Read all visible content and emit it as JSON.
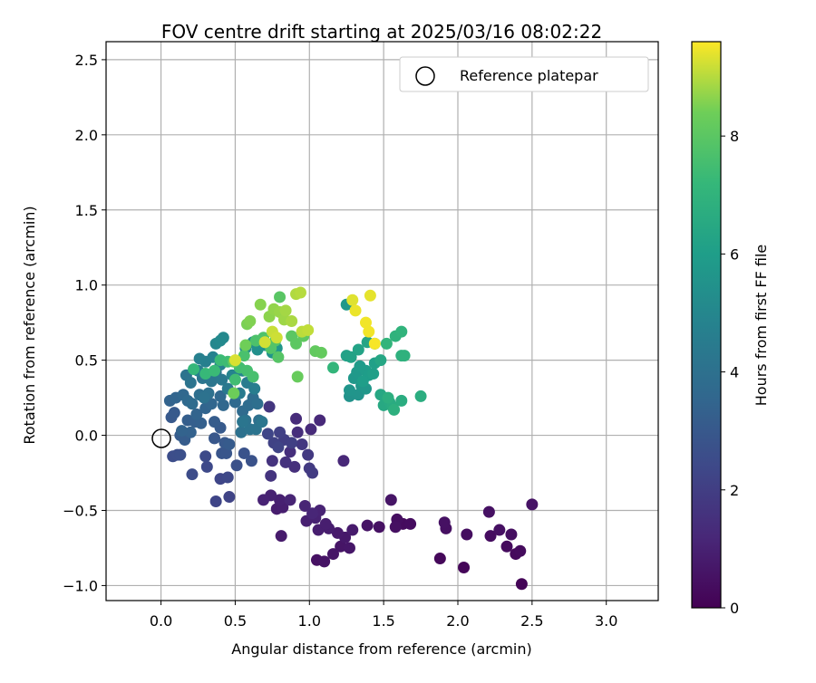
{
  "chart_data": {
    "type": "scatter",
    "title": "FOV centre drift starting at 2025/03/16 08:02:22",
    "xlabel": "Angular distance from reference (arcmin)",
    "ylabel": "Rotation from reference (arcmin)",
    "colorbar_label": "Hours from first FF file",
    "colormap": "viridis",
    "color_range": [
      0,
      9.6
    ],
    "xlim": [
      -0.37,
      3.35
    ],
    "ylim": [
      -1.1,
      2.62
    ],
    "xticks": [
      "0.0",
      "0.5",
      "1.0",
      "1.5",
      "2.0",
      "2.5",
      "3.0"
    ],
    "yticks": [
      "−1.0",
      "−0.5",
      "0.0",
      "0.5",
      "1.0",
      "1.5",
      "2.0",
      "2.5"
    ],
    "colorbar_ticks": [
      "0",
      "2",
      "4",
      "6",
      "8"
    ],
    "grid": true,
    "legend": {
      "position": "top-right",
      "entries": [
        "Reference platepar"
      ]
    },
    "reference_point": {
      "x": 0.0,
      "y": 0.0
    },
    "points": [
      [
        2.43,
        -0.99,
        0.1
      ],
      [
        2.04,
        -0.88,
        0.15
      ],
      [
        1.88,
        -0.82,
        0.2
      ],
      [
        2.39,
        -0.79,
        0.25
      ],
      [
        2.42,
        -0.77,
        0.3
      ],
      [
        2.33,
        -0.74,
        0.3
      ],
      [
        2.22,
        -0.67,
        0.35
      ],
      [
        2.36,
        -0.66,
        0.4
      ],
      [
        2.06,
        -0.66,
        0.4
      ],
      [
        2.28,
        -0.63,
        0.45
      ],
      [
        1.92,
        -0.62,
        0.45
      ],
      [
        1.91,
        -0.58,
        0.5
      ],
      [
        2.21,
        -0.51,
        0.5
      ],
      [
        2.5,
        -0.46,
        0.55
      ],
      [
        1.63,
        -0.59,
        0.3
      ],
      [
        1.68,
        -0.59,
        0.35
      ],
      [
        1.59,
        -0.56,
        0.4
      ],
      [
        1.58,
        -0.61,
        0.45
      ],
      [
        1.47,
        -0.61,
        0.5
      ],
      [
        1.39,
        -0.6,
        0.55
      ],
      [
        1.55,
        -0.43,
        0.6
      ],
      [
        1.05,
        -0.83,
        0.5
      ],
      [
        1.1,
        -0.84,
        0.55
      ],
      [
        1.16,
        -0.79,
        0.6
      ],
      [
        1.21,
        -0.74,
        0.6
      ],
      [
        1.27,
        -0.75,
        0.65
      ],
      [
        1.24,
        -0.68,
        0.7
      ],
      [
        1.19,
        -0.65,
        0.75
      ],
      [
        1.29,
        -0.63,
        0.8
      ],
      [
        1.13,
        -0.62,
        0.85
      ],
      [
        1.06,
        -0.63,
        0.9
      ],
      [
        1.11,
        -0.59,
        0.9
      ],
      [
        0.98,
        -0.57,
        0.95
      ],
      [
        1.04,
        -0.55,
        1.0
      ],
      [
        1.07,
        -0.5,
        1.05
      ],
      [
        0.97,
        -0.47,
        1.1
      ],
      [
        1.02,
        -0.52,
        1.15
      ],
      [
        0.81,
        -0.67,
        0.8
      ],
      [
        0.78,
        -0.49,
        0.85
      ],
      [
        0.82,
        -0.48,
        0.9
      ],
      [
        0.8,
        -0.43,
        0.95
      ],
      [
        0.74,
        -0.4,
        1.0
      ],
      [
        0.69,
        -0.43,
        1.05
      ],
      [
        0.87,
        -0.43,
        1.1
      ],
      [
        1.23,
        -0.17,
        1.2
      ],
      [
        1.07,
        0.1,
        1.25
      ],
      [
        1.01,
        0.04,
        1.3
      ],
      [
        0.91,
        0.11,
        1.35
      ],
      [
        0.92,
        0.02,
        1.4
      ],
      [
        0.87,
        -0.11,
        1.45
      ],
      [
        0.9,
        -0.21,
        1.5
      ],
      [
        0.84,
        -0.18,
        1.55
      ],
      [
        0.75,
        -0.17,
        1.6
      ],
      [
        0.74,
        -0.27,
        1.65
      ],
      [
        0.73,
        0.19,
        1.7
      ],
      [
        0.95,
        -0.06,
        1.75
      ],
      [
        0.99,
        -0.13,
        1.8
      ],
      [
        1.0,
        -0.22,
        1.85
      ],
      [
        1.02,
        -0.25,
        1.9
      ],
      [
        0.83,
        -0.03,
        2.0
      ],
      [
        0.88,
        -0.05,
        2.05
      ],
      [
        0.8,
        0.02,
        2.1
      ],
      [
        0.76,
        -0.05,
        2.15
      ],
      [
        0.79,
        -0.08,
        2.2
      ],
      [
        0.72,
        0.01,
        2.25
      ],
      [
        0.46,
        -0.41,
        2.2
      ],
      [
        0.37,
        -0.44,
        2.25
      ],
      [
        0.4,
        -0.29,
        2.3
      ],
      [
        0.45,
        -0.28,
        2.35
      ],
      [
        0.31,
        -0.21,
        2.4
      ],
      [
        0.3,
        -0.14,
        2.45
      ],
      [
        0.21,
        -0.26,
        2.5
      ],
      [
        0.08,
        -0.14,
        2.55
      ],
      [
        0.11,
        -0.13,
        2.6
      ],
      [
        0.13,
        -0.13,
        2.65
      ],
      [
        0.51,
        -0.2,
        2.7
      ],
      [
        0.61,
        -0.17,
        2.75
      ],
      [
        0.56,
        -0.12,
        2.8
      ],
      [
        0.41,
        -0.12,
        2.85
      ],
      [
        0.44,
        -0.12,
        2.9
      ],
      [
        0.36,
        -0.02,
        2.95
      ],
      [
        0.43,
        -0.05,
        3.0
      ],
      [
        0.4,
        0.05,
        3.05
      ],
      [
        0.46,
        -0.06,
        3.1
      ],
      [
        0.36,
        0.09,
        3.15
      ],
      [
        0.07,
        0.12,
        3.0
      ],
      [
        0.09,
        0.15,
        3.05
      ],
      [
        0.13,
        0.0,
        3.1
      ],
      [
        0.16,
        -0.03,
        3.15
      ],
      [
        0.18,
        0.1,
        3.2
      ],
      [
        0.23,
        0.09,
        3.25
      ],
      [
        0.27,
        0.08,
        3.3
      ],
      [
        0.2,
        0.02,
        3.35
      ],
      [
        0.14,
        0.03,
        3.4
      ],
      [
        0.24,
        0.14,
        3.45
      ],
      [
        0.3,
        0.18,
        3.5
      ],
      [
        0.34,
        0.21,
        3.55
      ],
      [
        0.42,
        0.2,
        3.6
      ],
      [
        0.4,
        0.26,
        3.65
      ],
      [
        0.5,
        0.22,
        3.7
      ],
      [
        0.55,
        0.16,
        3.75
      ],
      [
        0.59,
        0.2,
        3.8
      ],
      [
        0.62,
        0.25,
        3.85
      ],
      [
        0.65,
        0.21,
        3.9
      ],
      [
        0.66,
        0.1,
        3.95
      ],
      [
        0.54,
        0.02,
        4.0
      ],
      [
        0.57,
        0.1,
        4.05
      ],
      [
        0.6,
        0.04,
        4.1
      ],
      [
        0.64,
        0.04,
        4.15
      ],
      [
        0.55,
        0.09,
        4.2
      ],
      [
        0.68,
        0.09,
        4.25
      ],
      [
        0.06,
        0.23,
        3.4
      ],
      [
        0.1,
        0.25,
        3.5
      ],
      [
        0.15,
        0.27,
        3.6
      ],
      [
        0.18,
        0.23,
        3.7
      ],
      [
        0.21,
        0.21,
        3.8
      ],
      [
        0.26,
        0.27,
        3.9
      ],
      [
        0.32,
        0.28,
        4.0
      ],
      [
        0.29,
        0.25,
        4.05
      ],
      [
        0.17,
        0.4,
        4.1
      ],
      [
        0.2,
        0.35,
        4.15
      ],
      [
        0.28,
        0.38,
        4.2
      ],
      [
        0.34,
        0.36,
        4.25
      ],
      [
        0.37,
        0.42,
        4.3
      ],
      [
        0.41,
        0.37,
        4.35
      ],
      [
        0.45,
        0.31,
        4.4
      ],
      [
        0.53,
        0.28,
        4.45
      ],
      [
        0.58,
        0.35,
        4.5
      ],
      [
        0.63,
        0.31,
        4.55
      ],
      [
        0.25,
        0.43,
        4.6
      ],
      [
        0.3,
        0.49,
        4.65
      ],
      [
        0.26,
        0.51,
        4.7
      ],
      [
        0.35,
        0.52,
        4.75
      ],
      [
        0.4,
        0.47,
        4.8
      ],
      [
        0.48,
        0.4,
        4.85
      ],
      [
        0.55,
        0.43,
        4.9
      ],
      [
        0.37,
        0.61,
        5.0
      ],
      [
        0.42,
        0.65,
        5.05
      ],
      [
        0.4,
        0.63,
        5.1
      ],
      [
        0.57,
        0.58,
        5.2
      ],
      [
        0.62,
        0.62,
        5.3
      ],
      [
        0.65,
        0.57,
        5.4
      ],
      [
        0.7,
        0.6,
        5.5
      ],
      [
        0.75,
        0.55,
        5.6
      ],
      [
        0.78,
        0.58,
        5.7
      ],
      [
        1.25,
        0.87,
        5.75
      ],
      [
        1.27,
        0.26,
        5.5
      ],
      [
        1.33,
        0.27,
        5.55
      ],
      [
        1.27,
        0.3,
        5.6
      ],
      [
        1.35,
        0.33,
        5.65
      ],
      [
        1.38,
        0.31,
        5.7
      ],
      [
        1.3,
        0.38,
        5.75
      ],
      [
        1.32,
        0.42,
        5.8
      ],
      [
        1.34,
        0.46,
        5.85
      ],
      [
        1.38,
        0.43,
        5.9
      ],
      [
        1.4,
        0.4,
        5.95
      ],
      [
        1.36,
        0.36,
        6.0
      ],
      [
        1.43,
        0.41,
        6.05
      ],
      [
        1.44,
        0.48,
        6.1
      ],
      [
        1.25,
        0.53,
        6.15
      ],
      [
        1.28,
        0.52,
        6.2
      ],
      [
        1.33,
        0.57,
        6.25
      ],
      [
        1.39,
        0.62,
        6.3
      ],
      [
        1.44,
        0.61,
        6.35
      ],
      [
        1.48,
        0.5,
        6.4
      ],
      [
        1.48,
        0.27,
        6.45
      ],
      [
        1.5,
        0.2,
        6.5
      ],
      [
        1.54,
        0.22,
        6.55
      ],
      [
        1.56,
        0.19,
        6.6
      ],
      [
        1.62,
        0.23,
        6.65
      ],
      [
        1.75,
        0.26,
        6.7
      ],
      [
        1.53,
        0.25,
        6.75
      ],
      [
        1.57,
        0.17,
        6.8
      ],
      [
        1.62,
        0.53,
        6.85
      ],
      [
        1.64,
        0.53,
        6.9
      ],
      [
        1.58,
        0.66,
        6.95
      ],
      [
        1.62,
        0.69,
        7.0
      ],
      [
        1.52,
        0.61,
        7.05
      ],
      [
        1.16,
        0.45,
        7.1
      ],
      [
        0.22,
        0.44,
        7.2
      ],
      [
        0.3,
        0.41,
        7.25
      ],
      [
        0.36,
        0.43,
        7.3
      ],
      [
        0.4,
        0.5,
        7.35
      ],
      [
        0.45,
        0.49,
        7.4
      ],
      [
        0.5,
        0.37,
        7.45
      ],
      [
        0.53,
        0.45,
        7.5
      ],
      [
        0.58,
        0.43,
        7.55
      ],
      [
        0.62,
        0.39,
        7.6
      ],
      [
        0.56,
        0.53,
        7.65
      ],
      [
        0.64,
        0.63,
        7.7
      ],
      [
        0.69,
        0.65,
        7.75
      ],
      [
        0.74,
        0.58,
        7.8
      ],
      [
        0.77,
        0.63,
        7.85
      ],
      [
        0.79,
        0.52,
        7.9
      ],
      [
        0.8,
        0.92,
        7.95
      ],
      [
        0.88,
        0.66,
        8.0
      ],
      [
        0.91,
        0.61,
        8.05
      ],
      [
        0.96,
        0.66,
        8.1
      ],
      [
        1.04,
        0.56,
        8.15
      ],
      [
        1.08,
        0.55,
        8.2
      ],
      [
        0.92,
        0.39,
        8.25
      ],
      [
        0.49,
        0.49,
        8.3
      ],
      [
        0.49,
        0.28,
        8.35
      ],
      [
        0.57,
        0.6,
        8.4
      ],
      [
        0.58,
        0.74,
        8.5
      ],
      [
        0.6,
        0.76,
        8.55
      ],
      [
        0.67,
        0.87,
        8.6
      ],
      [
        0.73,
        0.79,
        8.65
      ],
      [
        0.76,
        0.84,
        8.7
      ],
      [
        0.8,
        0.82,
        8.75
      ],
      [
        0.83,
        0.77,
        8.8
      ],
      [
        0.84,
        0.83,
        8.85
      ],
      [
        0.88,
        0.76,
        8.9
      ],
      [
        0.91,
        0.94,
        8.95
      ],
      [
        0.94,
        0.95,
        9.0
      ],
      [
        0.95,
        0.69,
        9.05
      ],
      [
        0.99,
        0.7,
        9.1
      ],
      [
        0.75,
        0.69,
        9.15
      ],
      [
        0.78,
        0.65,
        9.2
      ],
      [
        0.7,
        0.62,
        9.25
      ],
      [
        0.5,
        0.5,
        9.3
      ],
      [
        1.29,
        0.9,
        9.35
      ],
      [
        1.41,
        0.93,
        9.4
      ],
      [
        1.31,
        0.83,
        9.45
      ],
      [
        1.38,
        0.75,
        9.5
      ],
      [
        1.4,
        0.69,
        9.5
      ],
      [
        1.44,
        0.61,
        9.55
      ]
    ]
  }
}
